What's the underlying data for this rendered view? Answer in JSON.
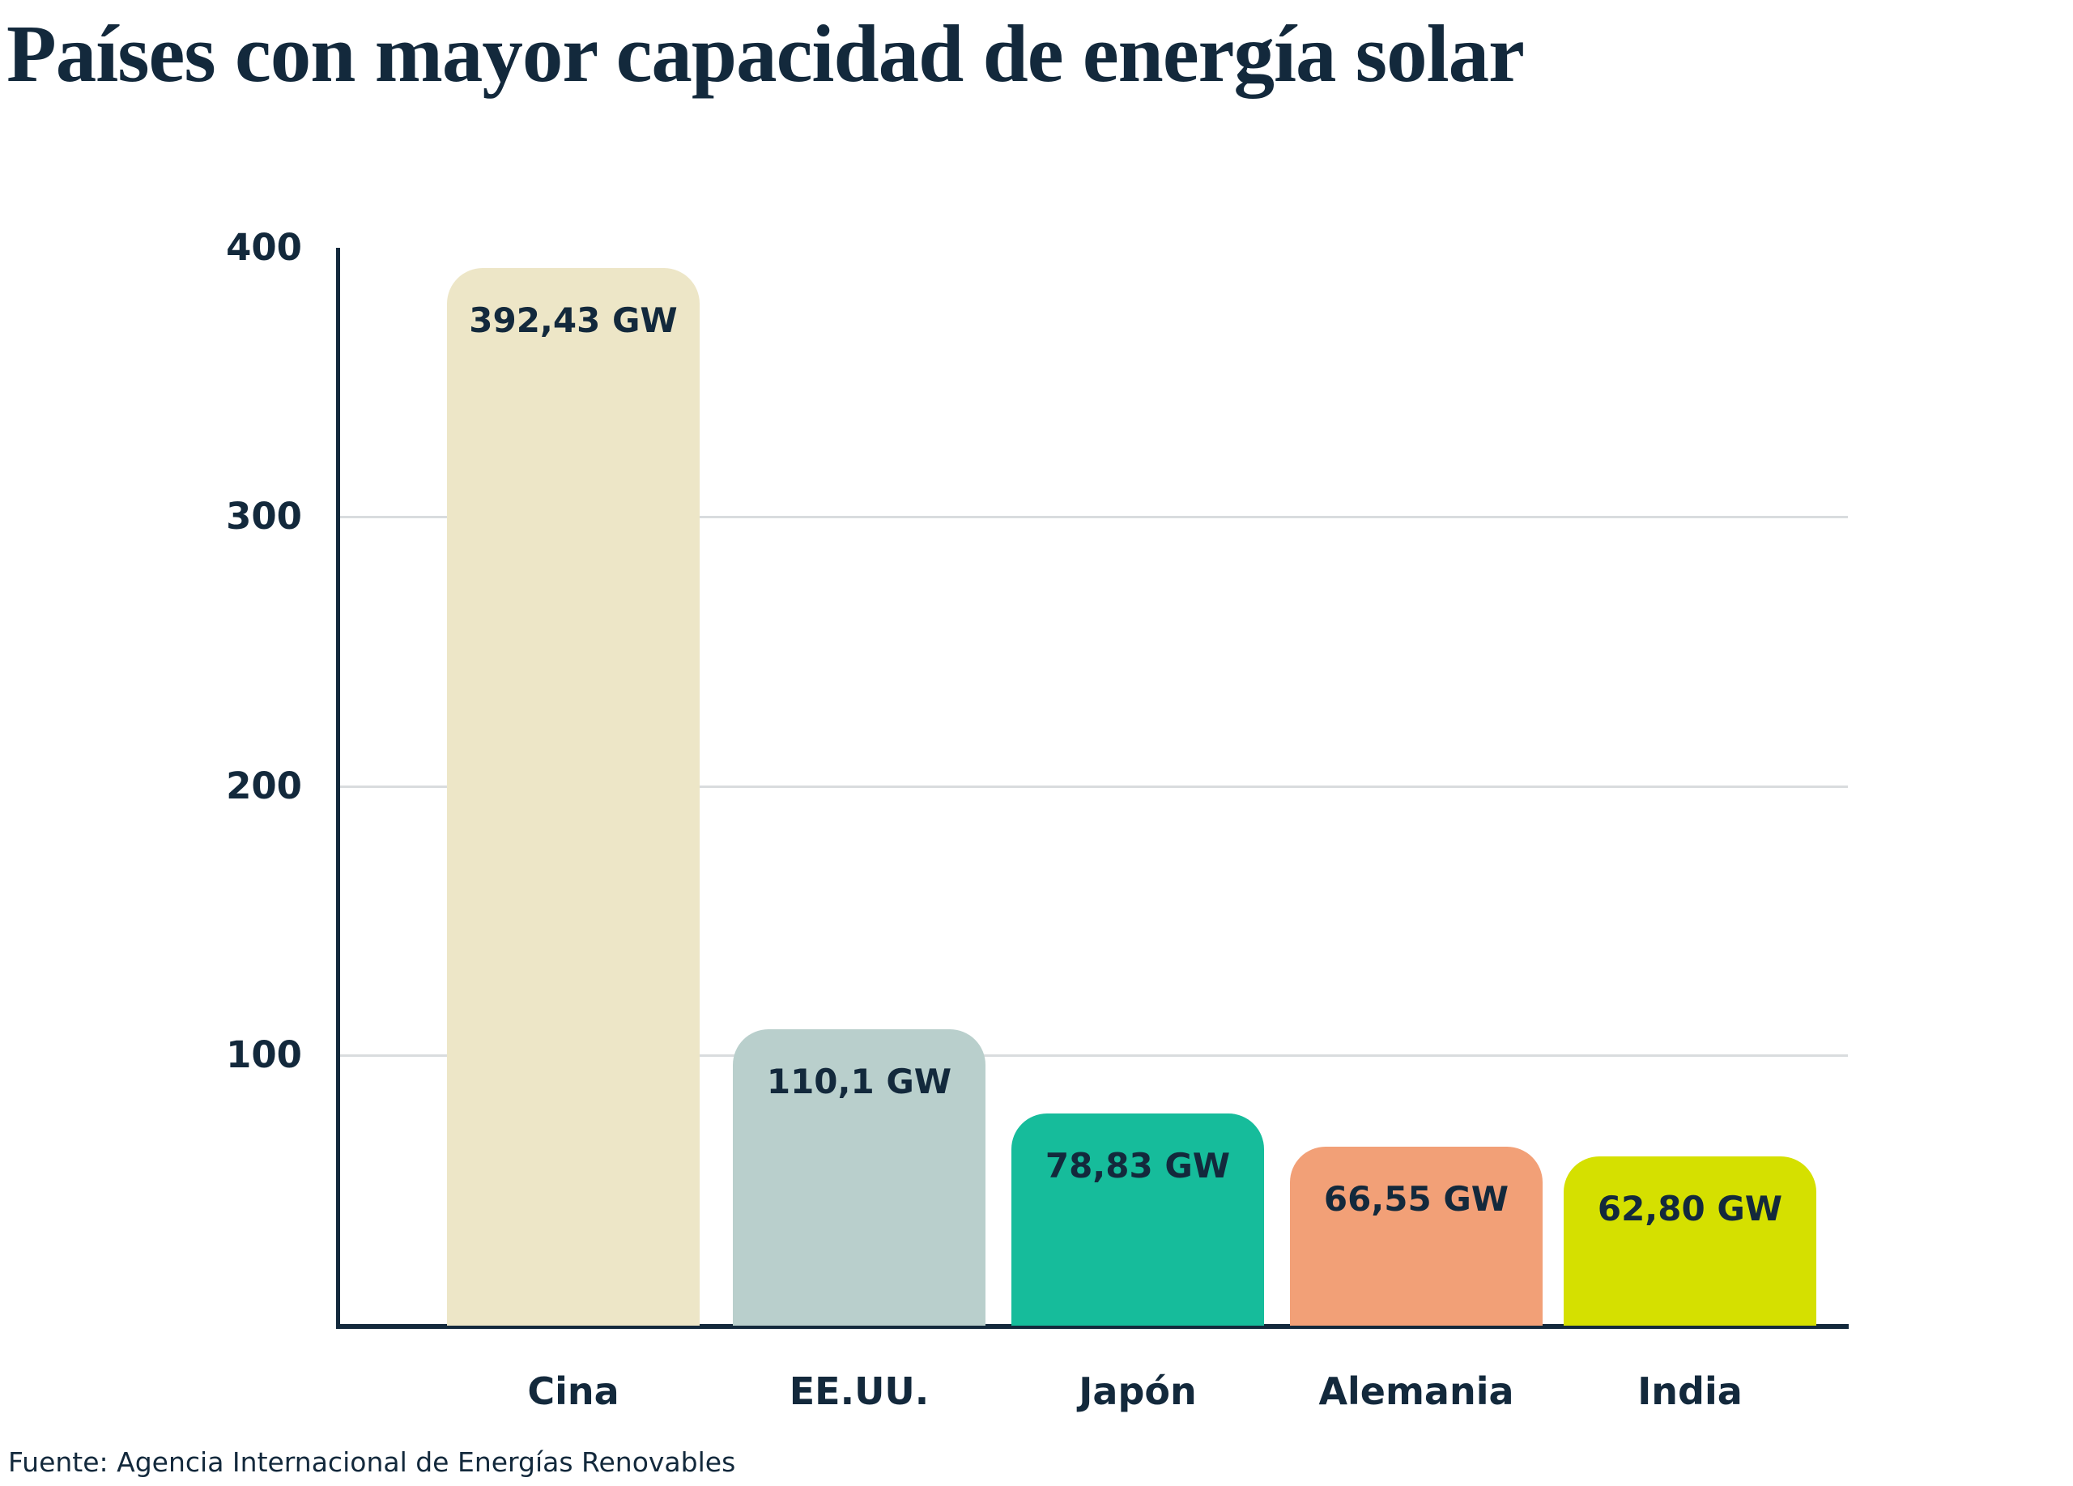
{
  "title": "Países con mayor capacidad de energía solar",
  "source": "Fuente: Agencia Internacional de Energías Renovables",
  "colors": {
    "text": "#13293C",
    "axis": "#13293C",
    "gridline": "#D9DCDE",
    "background": "#FFFFFF"
  },
  "chart_data": {
    "type": "bar",
    "title": "Países con mayor capacidad de energía solar",
    "unit": "GW",
    "categories": [
      "Cina",
      "EE.UU.",
      "Japón",
      "Alemania",
      "India"
    ],
    "values": [
      392.43,
      110.1,
      78.83,
      66.55,
      62.8
    ],
    "bars": [
      {
        "category": "Cina",
        "value": 392.43,
        "label": "392,43 GW",
        "color": "#EDE6C7"
      },
      {
        "category": "EE.UU.",
        "value": 110.1,
        "label": "110,1 GW",
        "color": "#B9CFCC"
      },
      {
        "category": "Japón",
        "value": 78.83,
        "label": "78,83 GW",
        "color": "#16BC9B"
      },
      {
        "category": "Alemania",
        "value": 66.55,
        "label": "66,55 GW",
        "color": "#F2A077"
      },
      {
        "category": "India",
        "value": 62.8,
        "label": "62,80 GW",
        "color": "#D5E000"
      }
    ],
    "yticks": [
      "400",
      "300",
      "200",
      "100"
    ],
    "ylim": [
      0,
      400
    ],
    "xlabel": "",
    "ylabel": "",
    "grid": true,
    "legend": false,
    "source": "Fuente: Agencia Internacional de Energías Renovables"
  }
}
